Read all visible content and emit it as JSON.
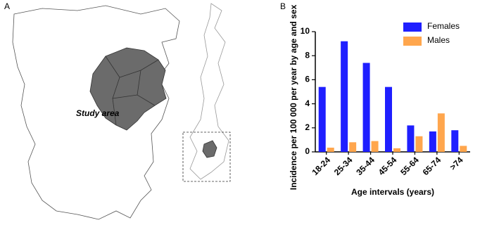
{
  "panels": {
    "a": "A",
    "b": "B"
  },
  "map": {
    "annotation": "Study area"
  },
  "chart_data": {
    "type": "bar",
    "y_label": "Incidence per 100 000 per year by age and sex",
    "x_label": "Age intervals (years)",
    "categories": [
      "18-24",
      "25-34",
      "35-44",
      "45-54",
      "55-64",
      "65-74",
      ">74"
    ],
    "series": [
      {
        "name": "Females",
        "color": "#1f1fff",
        "values": [
          5.4,
          9.2,
          7.4,
          5.4,
          2.2,
          1.7,
          1.8
        ]
      },
      {
        "name": "Males",
        "color": "#ffa64d",
        "values": [
          0.35,
          0.8,
          0.9,
          0.3,
          1.3,
          3.2,
          0.5
        ]
      }
    ],
    "ylim": [
      0,
      10
    ],
    "yticks": [
      0,
      2,
      4,
      6,
      8,
      10
    ],
    "grid": false,
    "legend": "upper right"
  }
}
